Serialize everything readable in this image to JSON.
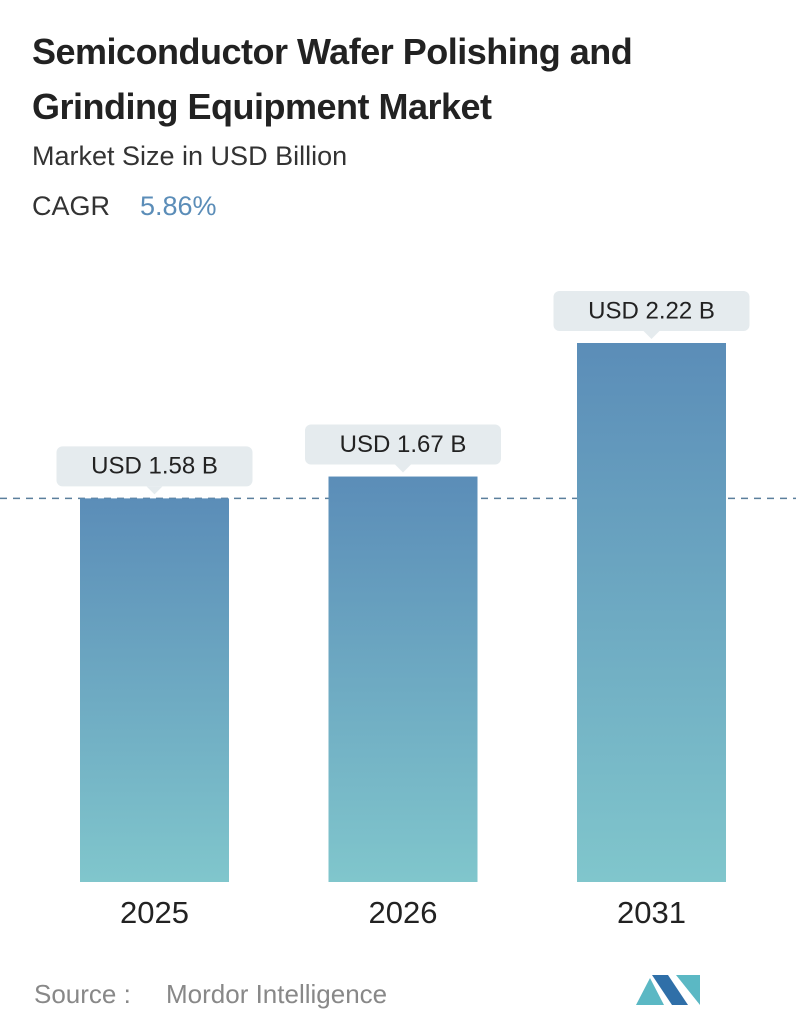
{
  "chart_data": {
    "type": "bar",
    "title": "Semiconductor Wafer Polishing and Grinding Equipment Market",
    "subtitle": "Market Size in USD Billion",
    "cagr_label": "CAGR",
    "cagr": "5.86%",
    "categories": [
      "2025",
      "2026",
      "2031"
    ],
    "values": [
      1.58,
      1.67,
      2.22
    ],
    "value_labels": [
      "USD 1.58 B",
      "USD 1.67 B",
      "USD 2.22 B"
    ],
    "color": [
      "#5b8db8",
      "#80c6cc"
    ],
    "source_label": "Source :",
    "source": "Mordor Intelligence"
  }
}
